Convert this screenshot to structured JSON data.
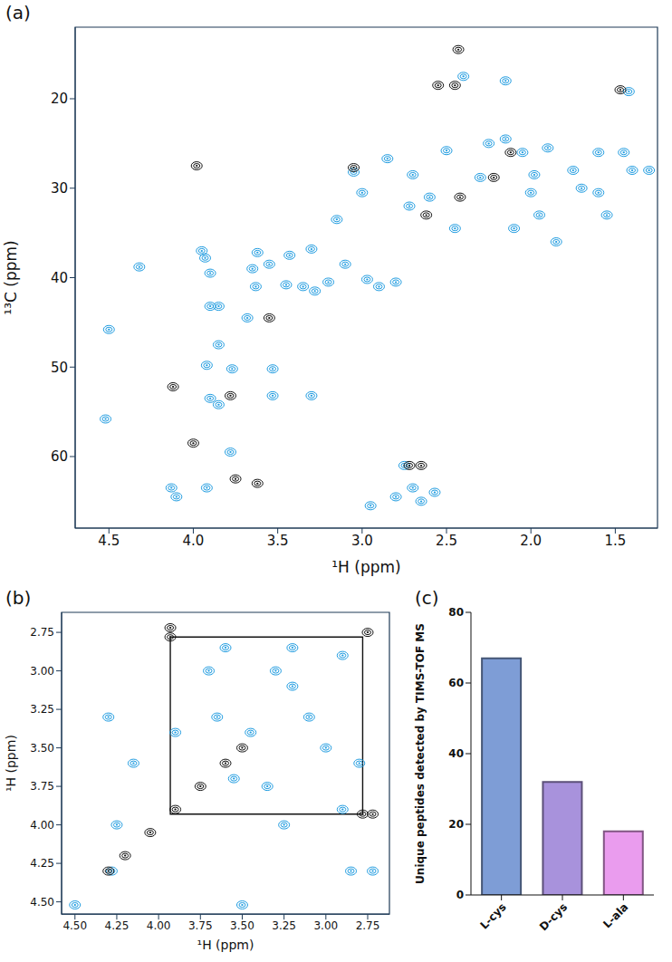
{
  "chart_data": [
    {
      "type": "scatter",
      "panel_label": "(a)",
      "x_label": "¹H (ppm)",
      "y_label": "¹³C (ppm)",
      "xlim": [
        4.7,
        1.25
      ],
      "ylim": [
        68,
        12
      ],
      "xticks": [
        {
          "value": 4.5,
          "label": "4.5"
        },
        {
          "value": 4,
          "label": "4.0"
        },
        {
          "value": 3.5,
          "label": "3.5"
        },
        {
          "value": 3,
          "label": "3.0"
        },
        {
          "value": 2.5,
          "label": "2.5"
        },
        {
          "value": 2,
          "label": "2.0"
        },
        {
          "value": 1.5,
          "label": "1.5"
        }
      ],
      "yticks": [
        20,
        30,
        40,
        50,
        60
      ],
      "series": [
        {
          "color": "#1e9be0",
          "marker": "contour",
          "x": [
            4.52,
            4.5,
            4.32,
            4.13,
            4.1,
            3.93,
            3.9,
            3.9,
            3.85,
            3.92,
            3.85,
            3.9,
            3.77,
            3.85,
            3.78,
            3.92,
            3.65,
            3.63,
            3.68,
            3.62,
            3.55,
            3.53,
            3.53,
            3.45,
            3.43,
            3.35,
            3.3,
            3.3,
            3.28,
            3.2,
            3.15,
            3.1,
            3.05,
            3.0,
            2.97,
            2.9,
            2.85,
            2.8,
            2.72,
            2.7,
            2.6,
            2.5,
            2.45,
            2.3,
            2.25,
            2.15,
            2.05,
            2.0,
            1.98,
            1.95,
            1.9,
            1.85,
            1.75,
            1.7,
            1.6,
            1.6,
            1.55,
            1.45,
            1.42,
            1.4,
            1.3,
            2.75,
            2.7,
            2.65,
            2.8,
            2.57,
            2.95,
            3.95,
            2.15,
            2.4,
            2.1
          ],
          "y": [
            55.8,
            45.8,
            38.8,
            63.5,
            64.5,
            37.8,
            39.5,
            43.2,
            43.2,
            49.8,
            47.5,
            53.5,
            50.2,
            54.2,
            59.5,
            63.5,
            39,
            41,
            44.5,
            37.2,
            38.5,
            50.2,
            53.2,
            40.8,
            37.5,
            41,
            36.8,
            53.2,
            41.5,
            40.5,
            33.5,
            38.5,
            28.2,
            30.5,
            40.2,
            41,
            26.7,
            40.5,
            32,
            28.5,
            31,
            25.8,
            34.5,
            28.8,
            25,
            24.5,
            26,
            30.5,
            28.5,
            33,
            25.5,
            36,
            28,
            30,
            26,
            30.5,
            33,
            26,
            19.2,
            28,
            28,
            61,
            63.5,
            65,
            64.5,
            64,
            65.5,
            37,
            18,
            17.5,
            34.5
          ]
        },
        {
          "color": "#111111",
          "marker": "contour",
          "x": [
            4.0,
            4.12,
            3.78,
            3.55,
            3.75,
            3.62,
            3.05,
            2.62,
            2.45,
            2.42,
            2.12,
            2.22,
            2.72,
            2.65,
            1.47,
            2.43,
            2.55,
            3.98
          ],
          "y": [
            58.5,
            52.2,
            53.2,
            44.5,
            62.5,
            63,
            27.7,
            33,
            18.5,
            31,
            26,
            28.8,
            61,
            61,
            19,
            14.5,
            18.5,
            27.5
          ]
        }
      ]
    },
    {
      "type": "scatter",
      "panel_label": "(b)",
      "x_label": "¹H (ppm)",
      "y_label": "¹H (ppm)",
      "xlim": [
        4.58,
        2.62
      ],
      "ylim": [
        4.58,
        2.62
      ],
      "xticks": [
        {
          "value": 4.5,
          "label": "4.50"
        },
        4.25,
        {
          "value": 4,
          "label": "4.00"
        },
        3.75,
        {
          "value": 3.5,
          "label": "3.50"
        },
        3.25,
        {
          "value": 3,
          "label": "3.00"
        },
        2.75
      ],
      "yticks": [
        2.75,
        {
          "value": 3,
          "label": "3.00"
        },
        3.25,
        {
          "value": 3.5,
          "label": "3.50"
        },
        3.75,
        {
          "value": 4,
          "label": "4.00"
        },
        4.25,
        {
          "value": 4.5,
          "label": "4.50"
        }
      ],
      "series": [
        {
          "color": "#1e9be0",
          "marker": "contour",
          "x": [
            4.5,
            4.28,
            4.15,
            3.65,
            3.45,
            3.3,
            3.2,
            3.0,
            2.9,
            2.85,
            2.72,
            3.5,
            3.9,
            4.25,
            3.7,
            3.2,
            3.1,
            2.9,
            3.6,
            2.8,
            3.35,
            4.3,
            3.25,
            3.55
          ],
          "y": [
            4.52,
            4.3,
            3.6,
            3.3,
            3.4,
            3.0,
            3.1,
            3.5,
            3.9,
            4.3,
            4.3,
            4.52,
            3.4,
            4.0,
            3.0,
            2.85,
            3.3,
            2.9,
            2.85,
            3.6,
            3.75,
            3.3,
            4.0,
            3.7
          ]
        },
        {
          "color": "#111111",
          "marker": "contour",
          "x": [
            4.3,
            4.2,
            4.05,
            3.9,
            3.75,
            3.6,
            3.5,
            2.75,
            3.93,
            2.78,
            3.93,
            2.72
          ],
          "y": [
            4.3,
            4.2,
            4.05,
            3.9,
            3.75,
            3.6,
            3.5,
            2.75,
            2.78,
            3.93,
            2.72,
            3.93
          ]
        }
      ],
      "annotations": [
        {
          "type": "rect",
          "x": [
            3.93,
            2.78
          ],
          "y": [
            3.93,
            2.78
          ]
        }
      ]
    },
    {
      "type": "bar",
      "panel_label": "(c)",
      "y_label": "Unique peptides detected by TIMS-TOF MS",
      "categories": [
        "L-cys",
        "D-cys",
        "L-ala"
      ],
      "values": [
        67,
        32,
        18
      ],
      "colors": [
        "#7e9dd6",
        "#a892dc",
        "#ea9cee"
      ],
      "ylim": [
        0,
        80
      ],
      "yticks": [
        0,
        20,
        40,
        60,
        80
      ]
    }
  ]
}
